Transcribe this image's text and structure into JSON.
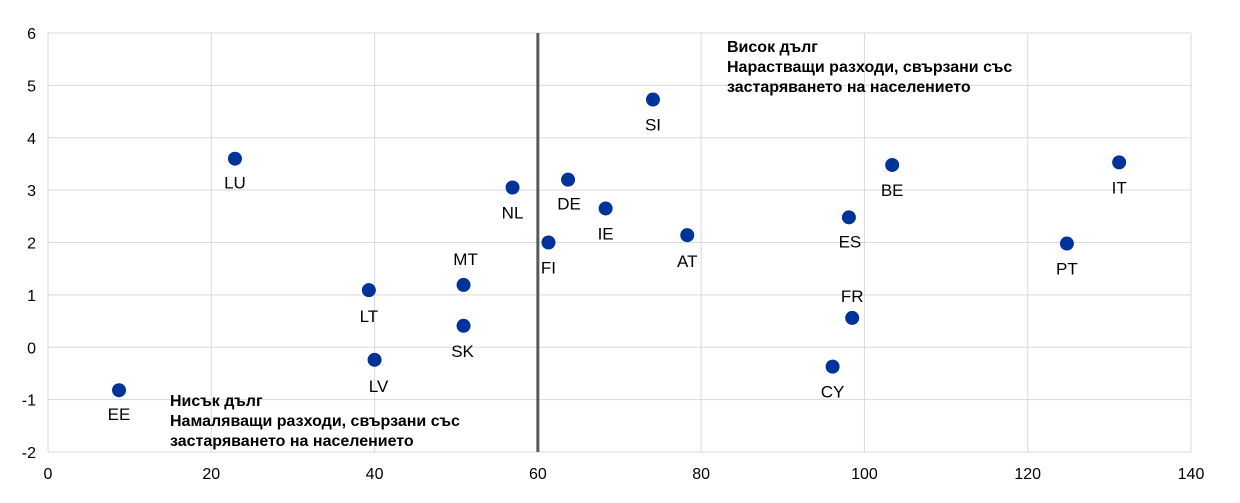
{
  "chart_data": {
    "type": "scatter",
    "title": "",
    "xlabel": "",
    "ylabel": "",
    "xlim": [
      0,
      140
    ],
    "ylim": [
      -2,
      6
    ],
    "x_ticks": [
      0,
      20,
      40,
      60,
      80,
      100,
      120,
      140
    ],
    "y_ticks": [
      -2,
      -1,
      0,
      1,
      2,
      3,
      4,
      5,
      6
    ],
    "grid": true,
    "vertical_line_x": 60,
    "marker_color": "#003399",
    "points": [
      {
        "label": "EE",
        "x": 8.7,
        "y": -0.82
      },
      {
        "label": "LU",
        "x": 22.9,
        "y": 3.6
      },
      {
        "label": "LT",
        "x": 39.3,
        "y": 1.09
      },
      {
        "label": "LV",
        "x": 40.0,
        "y": -0.24
      },
      {
        "label": "MT",
        "x": 50.9,
        "y": 1.19
      },
      {
        "label": "SK",
        "x": 50.9,
        "y": 0.41
      },
      {
        "label": "NL",
        "x": 56.9,
        "y": 3.05
      },
      {
        "label": "FI",
        "x": 61.3,
        "y": 2.0
      },
      {
        "label": "DE",
        "x": 63.7,
        "y": 3.2
      },
      {
        "label": "IE",
        "x": 68.3,
        "y": 2.65
      },
      {
        "label": "SI",
        "x": 74.1,
        "y": 4.73
      },
      {
        "label": "AT",
        "x": 78.3,
        "y": 2.14
      },
      {
        "label": "CY",
        "x": 96.1,
        "y": -0.37
      },
      {
        "label": "ES",
        "x": 98.1,
        "y": 2.48
      },
      {
        "label": "FR",
        "x": 98.5,
        "y": 0.56
      },
      {
        "label": "BE",
        "x": 103.4,
        "y": 3.48
      },
      {
        "label": "PT",
        "x": 124.8,
        "y": 1.98
      },
      {
        "label": "IT",
        "x": 131.2,
        "y": 3.53
      }
    ],
    "annotations": {
      "high": [
        "Висок дълг",
        "Нарастващи разходи, свързани със",
        "застаряването на населението"
      ],
      "low": [
        "Нисък дълг",
        "Намаляващи разходи, свързани със",
        "застаряването на населението"
      ]
    }
  }
}
